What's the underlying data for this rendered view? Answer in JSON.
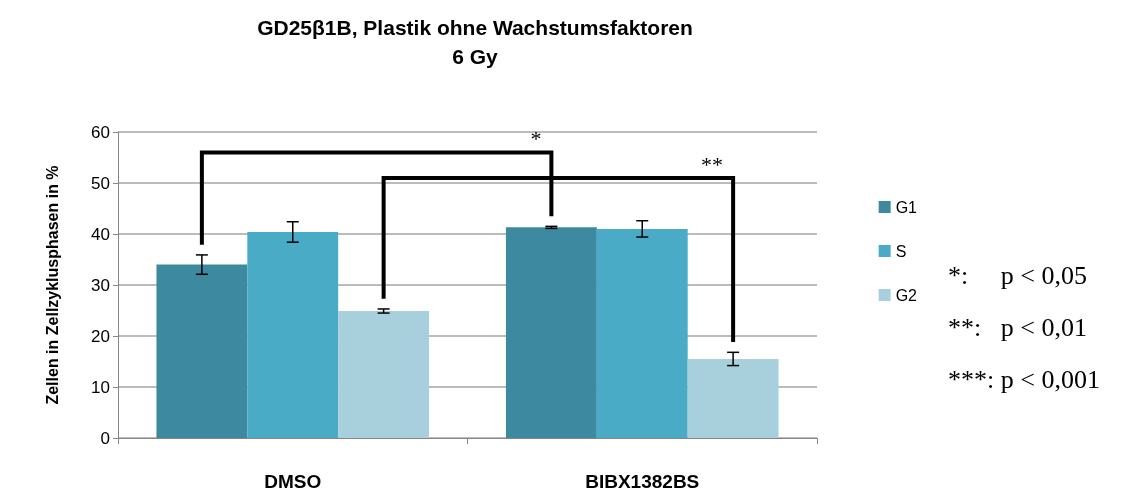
{
  "chart_data": {
    "type": "bar",
    "title": "GD25β1B, Plastik ohne Wachstumsfaktoren",
    "subtitle": "6 Gy",
    "ylabel": "Zellen in Zellzyklusphasen in %",
    "categories": [
      "DMSO",
      "BIBX1382BS"
    ],
    "series": [
      {
        "name": "G1",
        "color": "#3d8aa0",
        "values": [
          34,
          41.3
        ],
        "errors": [
          1.9,
          0.2
        ]
      },
      {
        "name": "S",
        "color": "#4aabc6",
        "values": [
          40.4,
          41
        ],
        "errors": [
          2,
          1.6
        ]
      },
      {
        "name": "G2",
        "color": "#a8cfdc",
        "values": [
          24.9,
          15.5
        ],
        "errors": [
          0.4,
          1.3
        ]
      }
    ],
    "ylim": [
      0,
      60
    ],
    "yticks": [
      0,
      10,
      20,
      30,
      40,
      50,
      60
    ],
    "grid": "y",
    "legend": "right",
    "annotations": [
      "*",
      "**",
      "*:     p < 0,05",
      "**:   p < 0,01",
      "***: p < 0,001"
    ]
  }
}
